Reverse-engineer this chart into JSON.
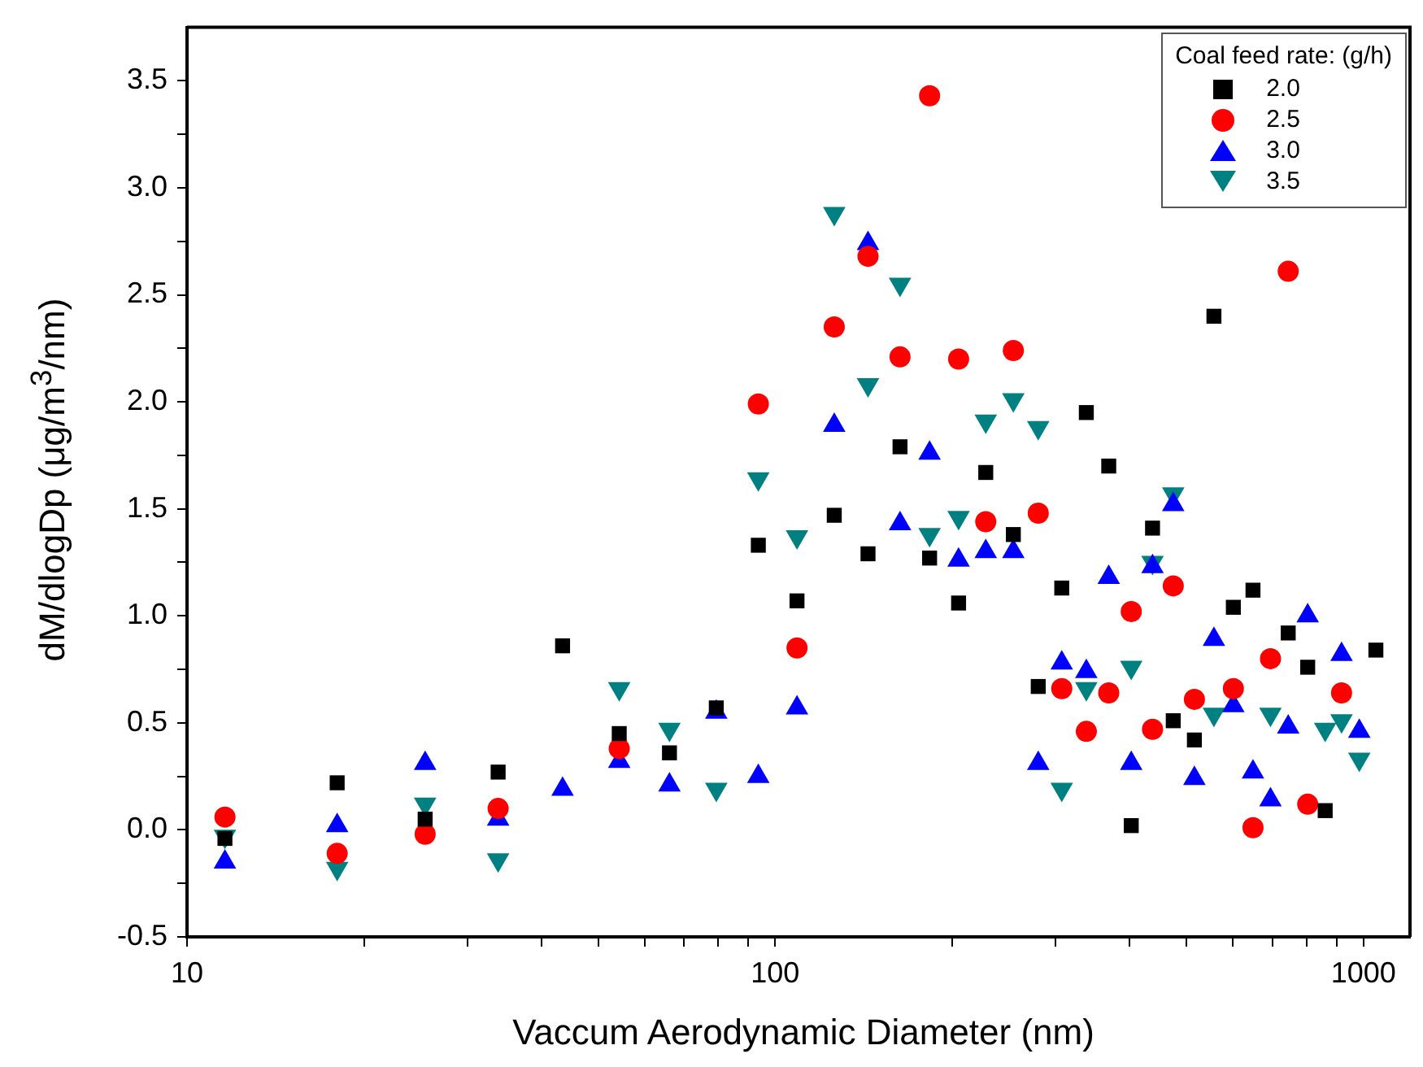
{
  "chart_data": {
    "type": "scatter",
    "xlabel": "Vaccum Aerodynamic Diameter (nm)",
    "ylabel": "dM/dlogDp (μg/m$^{3}$/nm)",
    "legend_title": "Coal feed rate: (g/h)",
    "legend": "top right",
    "log": "x",
    "grid": false,
    "xlim": [
      10,
      1200
    ],
    "xticks": [
      10,
      {
        "value": 20,
        "label": null
      },
      {
        "value": 30,
        "label": null
      },
      {
        "value": 40,
        "label": null
      },
      {
        "value": 50,
        "label": null
      },
      {
        "value": 60,
        "label": null
      },
      {
        "value": 70,
        "label": null
      },
      {
        "value": 80,
        "label": null
      },
      {
        "value": 90,
        "label": null
      },
      100,
      {
        "value": 200,
        "label": null
      },
      {
        "value": 300,
        "label": null
      },
      {
        "value": 400,
        "label": null
      },
      {
        "value": 500,
        "label": null
      },
      {
        "value": 600,
        "label": null
      },
      {
        "value": 700,
        "label": null
      },
      {
        "value": 800,
        "label": null
      },
      {
        "value": 900,
        "label": null
      },
      1000
    ],
    "ylim": [
      -0.5,
      3.75
    ],
    "yticks": [
      -0.5,
      {
        "value": -0.25,
        "label": null
      },
      {
        "value": 0,
        "label": "0.0"
      },
      {
        "value": 0.25,
        "label": null
      },
      0.5,
      {
        "value": 0.75,
        "label": null
      },
      {
        "value": 1,
        "label": "1.0"
      },
      {
        "value": 1.25,
        "label": null
      },
      1.5,
      {
        "value": 1.75,
        "label": null
      },
      {
        "value": 2,
        "label": "2.0"
      },
      {
        "value": 2.25,
        "label": null
      },
      2.5,
      {
        "value": 2.75,
        "label": null
      },
      {
        "value": 3,
        "label": "3.0"
      },
      {
        "value": 3.25,
        "label": null
      },
      3.5
    ],
    "series": [
      {
        "name": "2.0",
        "color": "#000000",
        "marker": "square",
        "x": [
          11.6,
          18,
          25.4,
          33.8,
          43.5,
          54.3,
          66.1,
          79.4,
          93.6,
          108.9,
          126,
          143.8,
          163,
          183,
          205,
          228,
          254,
          280,
          307,
          338,
          369,
          403,
          438,
          475,
          516,
          557,
          601,
          649,
          745,
          804,
          861,
          1050
        ],
        "values": [
          -0.04,
          0.22,
          0.05,
          0.27,
          0.86,
          0.45,
          0.36,
          0.57,
          1.33,
          1.07,
          1.47,
          1.29,
          1.79,
          1.27,
          1.06,
          1.67,
          1.38,
          0.67,
          1.13,
          1.95,
          1.7,
          0.02,
          1.41,
          0.51,
          0.42,
          2.4,
          1.04,
          1.12,
          0.92,
          0.76,
          0.09,
          0.84
        ]
      },
      {
        "name": "2.5",
        "color": "#ff0000",
        "marker": "circle",
        "x": [
          11.6,
          18,
          25.4,
          33.8,
          54.3,
          93.6,
          108.9,
          126,
          143.8,
          163,
          183,
          205,
          228,
          254,
          280,
          307,
          338,
          369,
          403,
          438,
          475,
          516,
          601,
          649,
          695,
          745,
          804,
          918
        ],
        "values": [
          0.06,
          -0.11,
          -0.02,
          0.1,
          0.38,
          1.99,
          0.85,
          2.35,
          2.68,
          2.21,
          3.43,
          2.2,
          1.44,
          2.24,
          1.48,
          0.66,
          0.46,
          0.64,
          1.02,
          0.47,
          1.14,
          0.61,
          0.66,
          0.01,
          0.8,
          2.61,
          0.12,
          0.64
        ]
      },
      {
        "name": "3.0",
        "color": "#0000ff",
        "marker": "triangle",
        "x": [
          11.6,
          18,
          25.4,
          33.8,
          43.5,
          54.3,
          66.1,
          79.4,
          93.6,
          108.9,
          126,
          143.8,
          163,
          183,
          205,
          228,
          254,
          280,
          307,
          338,
          369,
          403,
          438,
          475,
          516,
          557,
          601,
          649,
          695,
          745,
          804,
          918,
          984
        ],
        "values": [
          -0.15,
          0.02,
          0.31,
          0.05,
          0.19,
          0.32,
          0.21,
          0.55,
          0.25,
          0.57,
          1.89,
          2.74,
          1.43,
          1.76,
          1.26,
          1.3,
          1.3,
          0.31,
          0.78,
          0.74,
          1.18,
          0.31,
          1.23,
          1.52,
          0.24,
          0.89,
          0.58,
          0.27,
          0.14,
          0.48,
          1,
          0.82,
          0.46
        ]
      },
      {
        "name": "3.5",
        "color": "#008080",
        "marker": "triangle-down",
        "x": [
          11.6,
          18,
          25.4,
          33.8,
          54.3,
          66.1,
          79.4,
          93.6,
          108.9,
          126,
          143.8,
          163,
          183,
          205,
          228,
          254,
          280,
          307,
          338,
          403,
          438,
          475,
          557,
          695,
          861,
          918,
          984
        ],
        "values": [
          -0.03,
          -0.18,
          0.12,
          -0.14,
          0.66,
          0.47,
          0.19,
          1.64,
          1.37,
          2.88,
          2.08,
          2.55,
          1.38,
          1.46,
          1.91,
          2.01,
          1.88,
          0.19,
          0.66,
          0.76,
          1.25,
          1.57,
          0.54,
          0.54,
          0.47,
          0.51,
          0.33
        ]
      }
    ]
  }
}
